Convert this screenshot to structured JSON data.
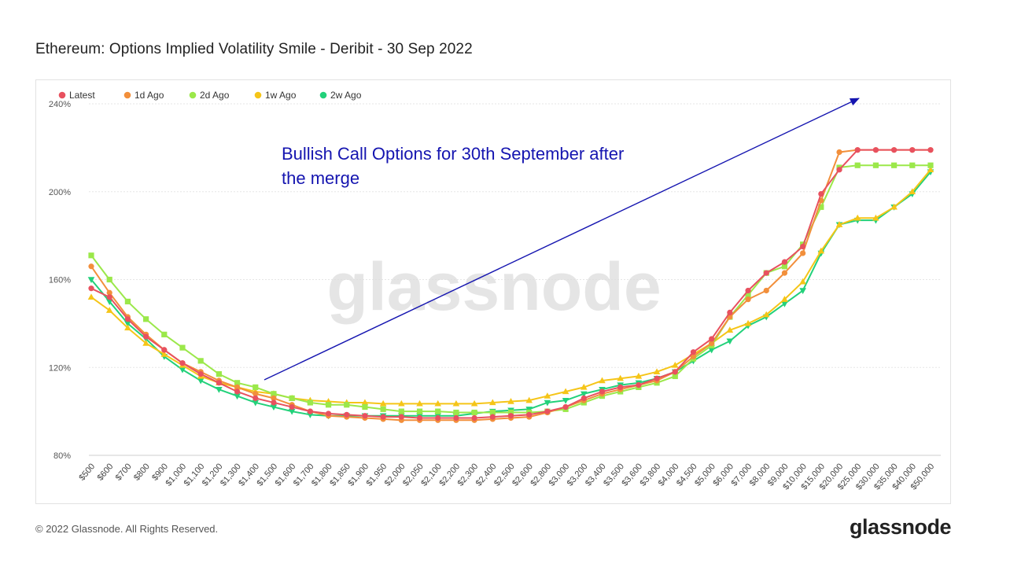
{
  "title": "Ethereum: Options Implied Volatility Smile - Deribit - 30 Sep 2022",
  "footer": {
    "copyright": "© 2022 Glassnode. All Rights Reserved.",
    "logo": "glassnode"
  },
  "watermark": "glassnode",
  "annotation": {
    "lines": [
      "Bullish Call Options for 30th September after",
      "the merge"
    ],
    "color": "#1515b0"
  },
  "chart_data": {
    "type": "line",
    "categories": [
      "$500",
      "$600",
      "$700",
      "$800",
      "$900",
      "$1,000",
      "$1,100",
      "$1,200",
      "$1,300",
      "$1,400",
      "$1,500",
      "$1,600",
      "$1,700",
      "$1,800",
      "$1,850",
      "$1,900",
      "$1,950",
      "$2,000",
      "$2,050",
      "$2,100",
      "$2,200",
      "$2,300",
      "$2,400",
      "$2,500",
      "$2,600",
      "$2,800",
      "$3,000",
      "$3,200",
      "$3,400",
      "$3,500",
      "$3,600",
      "$3,800",
      "$4,000",
      "$4,500",
      "$5,000",
      "$6,000",
      "$7,000",
      "$8,000",
      "$9,000",
      "$10,000",
      "$15,000",
      "$20,000",
      "$25,000",
      "$30,000",
      "$35,000",
      "$40,000",
      "$50,000"
    ],
    "y_ticks": [
      80,
      120,
      160,
      200,
      240
    ],
    "y_tick_labels": [
      "80%",
      "120%",
      "160%",
      "200%",
      "240%"
    ],
    "ylim": [
      80,
      240
    ],
    "grid": true,
    "legend_position": "top-left",
    "series": [
      {
        "name": "Latest",
        "color": "#e8515f",
        "marker": "circle",
        "values": [
          156,
          152,
          142,
          134,
          128,
          122,
          117,
          113,
          109,
          106,
          104,
          102,
          100,
          99,
          98.5,
          98,
          97.5,
          97.5,
          97,
          97,
          97,
          97,
          97.5,
          98,
          98.5,
          100,
          102,
          106,
          109,
          111,
          112,
          115,
          118,
          127,
          133,
          145,
          155,
          163,
          168,
          175,
          199,
          210,
          219,
          219,
          219,
          219,
          219
        ]
      },
      {
        "name": "1d Ago",
        "color": "#f28f3b",
        "marker": "circle",
        "values": [
          166,
          154,
          143,
          135,
          128,
          122,
          118,
          114,
          111,
          108,
          106,
          103,
          100,
          98,
          97.5,
          97,
          96.5,
          96,
          96,
          96,
          96,
          96,
          96.5,
          97,
          97.5,
          99.5,
          102,
          105,
          108,
          110,
          112,
          114,
          118,
          125,
          131,
          143,
          151,
          155,
          163,
          172,
          196,
          218,
          219,
          219,
          219,
          219,
          219
        ]
      },
      {
        "name": "2d Ago",
        "color": "#9be84a",
        "marker": "square",
        "values": [
          171,
          160,
          150,
          142,
          135,
          129,
          123,
          117,
          113,
          111,
          108,
          106,
          104,
          103,
          103,
          102,
          101,
          100,
          100,
          100,
          99.5,
          99.5,
          99.5,
          99.5,
          99.5,
          100,
          101,
          104,
          107,
          109,
          111,
          113,
          116,
          124,
          130,
          143,
          153,
          163,
          166,
          176,
          193,
          211,
          212,
          212,
          212,
          212,
          212
        ]
      },
      {
        "name": "1w Ago",
        "color": "#f5c518",
        "marker": "triangle-up",
        "values": [
          152,
          146,
          138,
          131,
          126,
          121,
          116,
          113,
          111,
          109,
          108,
          106,
          105,
          104.5,
          104,
          104,
          103.5,
          103.5,
          103.5,
          103.5,
          103.5,
          103.5,
          104,
          104.5,
          105,
          107,
          109,
          111,
          114,
          115,
          116,
          118,
          121,
          126,
          131,
          137,
          140,
          144,
          151,
          159,
          173,
          185,
          188,
          188,
          193,
          200,
          210
        ]
      },
      {
        "name": "2w Ago",
        "color": "#22d17a",
        "marker": "triangle-down",
        "values": [
          160,
          150,
          140,
          133,
          125,
          119,
          114,
          110,
          107,
          104,
          102,
          100,
          98.5,
          98,
          98,
          98,
          98,
          98,
          98,
          98,
          98,
          99,
          100,
          100.5,
          101,
          104,
          105,
          108,
          110,
          112,
          113,
          115,
          118,
          123,
          128,
          132,
          139,
          143,
          149,
          155,
          172,
          185,
          187,
          187,
          193,
          199,
          209
        ]
      }
    ]
  }
}
